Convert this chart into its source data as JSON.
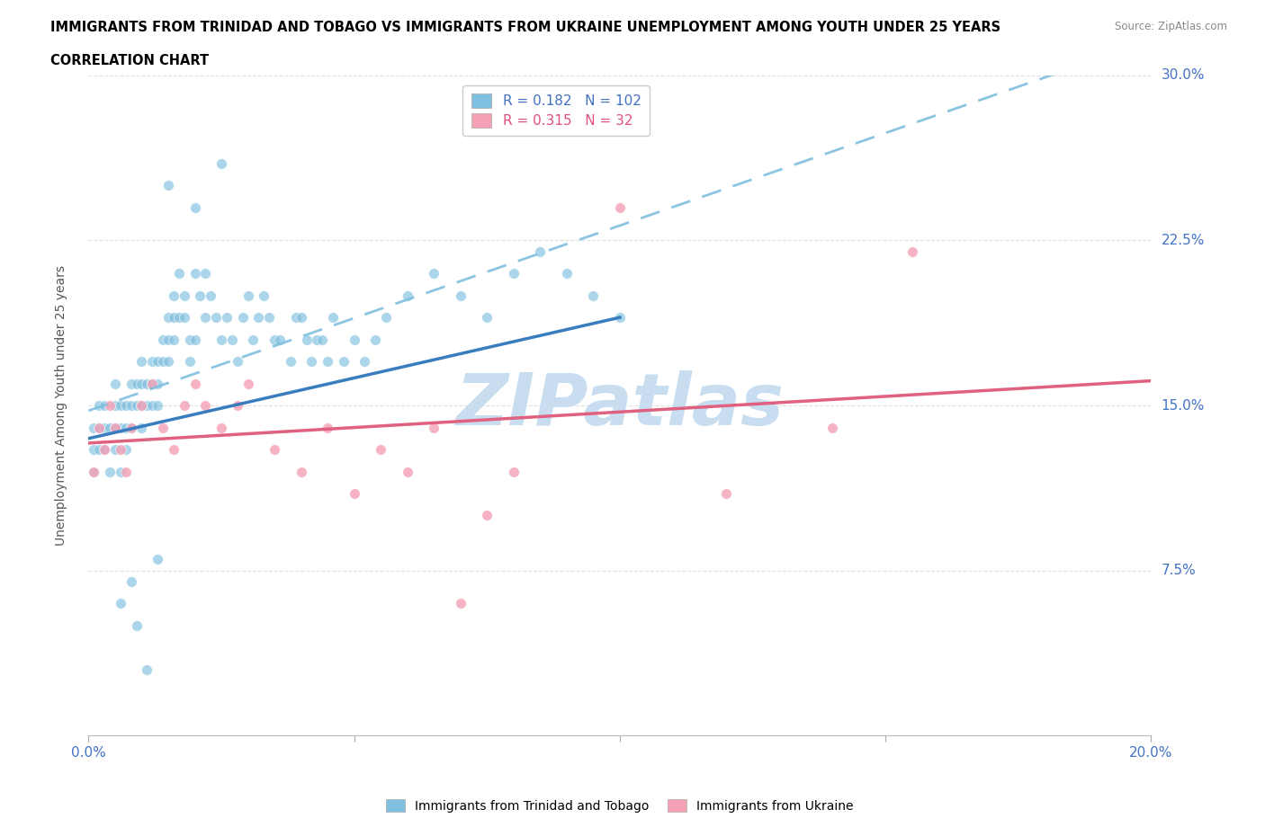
{
  "title_line1": "IMMIGRANTS FROM TRINIDAD AND TOBAGO VS IMMIGRANTS FROM UKRAINE UNEMPLOYMENT AMONG YOUTH UNDER 25 YEARS",
  "title_line2": "CORRELATION CHART",
  "source_text": "Source: ZipAtlas.com",
  "ylabel": "Unemployment Among Youth under 25 years",
  "xlim": [
    0.0,
    0.2
  ],
  "ylim": [
    0.0,
    0.3
  ],
  "yticks": [
    0.075,
    0.15,
    0.225,
    0.3
  ],
  "ytick_labels": [
    "7.5%",
    "15.0%",
    "22.5%",
    "30.0%"
  ],
  "color_tt": "#7fbfdf",
  "color_uk": "#f4a0b5",
  "trend_tt_solid_color": "#3a7dbf",
  "trend_tt_dash_color": "#7fbfdf",
  "trend_uk_color": "#e06080",
  "R_tt": 0.182,
  "N_tt": 102,
  "R_uk": 0.315,
  "N_uk": 32,
  "tt_x": [
    0.001,
    0.001,
    0.001,
    0.002,
    0.002,
    0.002,
    0.003,
    0.003,
    0.003,
    0.004,
    0.004,
    0.005,
    0.005,
    0.005,
    0.005,
    0.006,
    0.006,
    0.006,
    0.007,
    0.007,
    0.007,
    0.008,
    0.008,
    0.008,
    0.009,
    0.009,
    0.01,
    0.01,
    0.01,
    0.01,
    0.011,
    0.011,
    0.012,
    0.012,
    0.012,
    0.013,
    0.013,
    0.013,
    0.014,
    0.014,
    0.015,
    0.015,
    0.015,
    0.016,
    0.016,
    0.016,
    0.017,
    0.017,
    0.018,
    0.018,
    0.019,
    0.019,
    0.02,
    0.02,
    0.021,
    0.022,
    0.022,
    0.023,
    0.024,
    0.025,
    0.026,
    0.027,
    0.028,
    0.029,
    0.03,
    0.031,
    0.032,
    0.033,
    0.034,
    0.035,
    0.036,
    0.038,
    0.039,
    0.04,
    0.041,
    0.042,
    0.043,
    0.044,
    0.045,
    0.046,
    0.048,
    0.05,
    0.052,
    0.054,
    0.056,
    0.06,
    0.065,
    0.07,
    0.075,
    0.08,
    0.085,
    0.09,
    0.095,
    0.1,
    0.015,
    0.02,
    0.025,
    0.013,
    0.008,
    0.006,
    0.009,
    0.011
  ],
  "tt_y": [
    0.14,
    0.12,
    0.13,
    0.13,
    0.15,
    0.14,
    0.14,
    0.15,
    0.13,
    0.14,
    0.12,
    0.14,
    0.13,
    0.15,
    0.16,
    0.14,
    0.15,
    0.12,
    0.14,
    0.15,
    0.13,
    0.16,
    0.15,
    0.14,
    0.15,
    0.16,
    0.16,
    0.15,
    0.14,
    0.17,
    0.15,
    0.16,
    0.17,
    0.15,
    0.16,
    0.15,
    0.16,
    0.17,
    0.17,
    0.18,
    0.19,
    0.17,
    0.18,
    0.2,
    0.19,
    0.18,
    0.19,
    0.21,
    0.2,
    0.19,
    0.18,
    0.17,
    0.18,
    0.21,
    0.2,
    0.19,
    0.21,
    0.2,
    0.19,
    0.18,
    0.19,
    0.18,
    0.17,
    0.19,
    0.2,
    0.18,
    0.19,
    0.2,
    0.19,
    0.18,
    0.18,
    0.17,
    0.19,
    0.19,
    0.18,
    0.17,
    0.18,
    0.18,
    0.17,
    0.19,
    0.17,
    0.18,
    0.17,
    0.18,
    0.19,
    0.2,
    0.21,
    0.2,
    0.19,
    0.21,
    0.22,
    0.21,
    0.2,
    0.19,
    0.25,
    0.24,
    0.26,
    0.08,
    0.07,
    0.06,
    0.05,
    0.03
  ],
  "uk_x": [
    0.001,
    0.002,
    0.003,
    0.004,
    0.005,
    0.006,
    0.007,
    0.008,
    0.01,
    0.012,
    0.014,
    0.016,
    0.018,
    0.02,
    0.022,
    0.025,
    0.028,
    0.03,
    0.035,
    0.04,
    0.045,
    0.05,
    0.055,
    0.06,
    0.065,
    0.07,
    0.075,
    0.08,
    0.1,
    0.12,
    0.14,
    0.155
  ],
  "uk_y": [
    0.12,
    0.14,
    0.13,
    0.15,
    0.14,
    0.13,
    0.12,
    0.14,
    0.15,
    0.16,
    0.14,
    0.13,
    0.15,
    0.16,
    0.15,
    0.14,
    0.15,
    0.16,
    0.13,
    0.12,
    0.14,
    0.11,
    0.13,
    0.12,
    0.14,
    0.06,
    0.1,
    0.12,
    0.24,
    0.11,
    0.14,
    0.22
  ],
  "watermark_top": "ZIP",
  "watermark_bottom": "atlas",
  "watermark_color": "#c8ddf0",
  "grid_color": "#d8d8d8"
}
